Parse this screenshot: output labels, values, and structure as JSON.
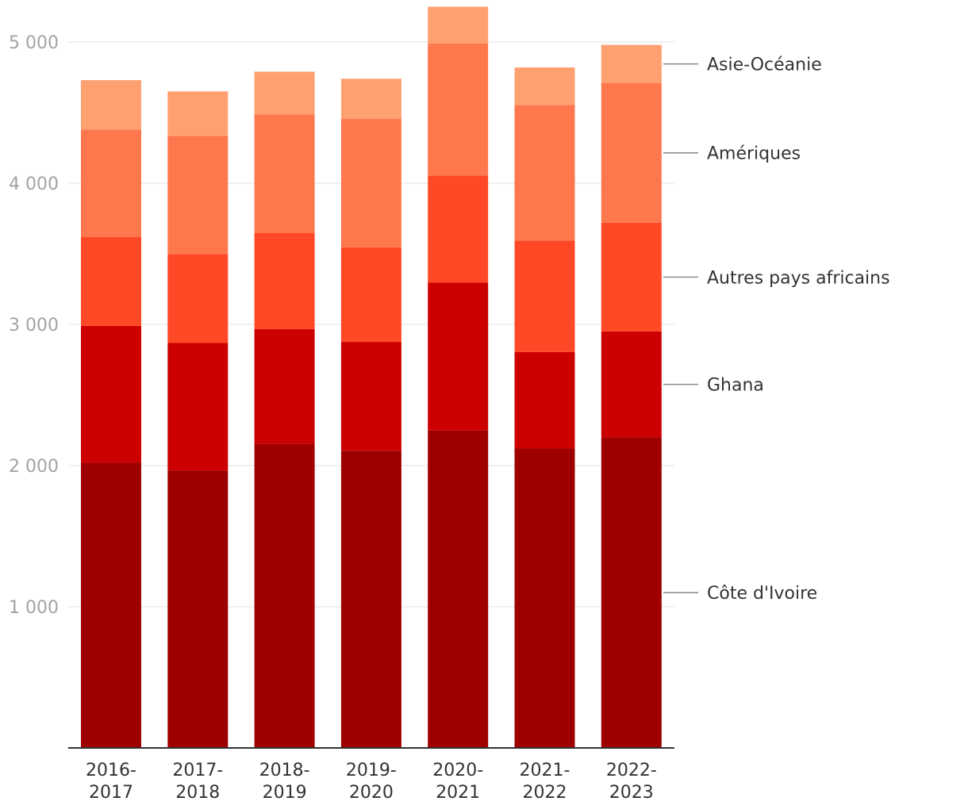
{
  "chart_data": {
    "type": "bar",
    "stacked": true,
    "title": "",
    "xlabel": "",
    "ylabel": "",
    "ylim": [
      0,
      5000
    ],
    "yticks": [
      1000,
      2000,
      3000,
      4000,
      5000
    ],
    "ytick_labels": [
      "1 000",
      "2 000",
      "3 000",
      "4 000",
      "5 000"
    ],
    "grid": true,
    "legend": "right (direct labels)",
    "categories": [
      [
        "2016-",
        "2017"
      ],
      [
        "2017-",
        "2018"
      ],
      [
        "2018-",
        "2019"
      ],
      [
        "2019-",
        "2020"
      ],
      [
        "2020-",
        "2021"
      ],
      [
        "2021-",
        "2022"
      ],
      [
        "2022-",
        "2023"
      ]
    ],
    "series": [
      {
        "name": "Côte d'Ivoire",
        "color": "#9e0000",
        "values": [
          2020,
          1964,
          2154,
          2105,
          2248,
          2121,
          2200
        ]
      },
      {
        "name": "Ghana",
        "color": "#cc0000",
        "values": [
          970,
          904,
          812,
          771,
          1047,
          683,
          750
        ]
      },
      {
        "name": "Autres pays africains",
        "color": "#ff4826",
        "values": [
          630,
          630,
          680,
          670,
          760,
          790,
          770
        ]
      },
      {
        "name": "Amériques",
        "color": "#ff774c",
        "values": [
          760,
          836,
          840,
          911,
          934,
          960,
          990
        ]
      },
      {
        "name": "Asie-Océanie",
        "color": "#ffa070",
        "values": [
          350,
          316,
          304,
          283,
          261,
          266,
          270
        ]
      }
    ]
  }
}
